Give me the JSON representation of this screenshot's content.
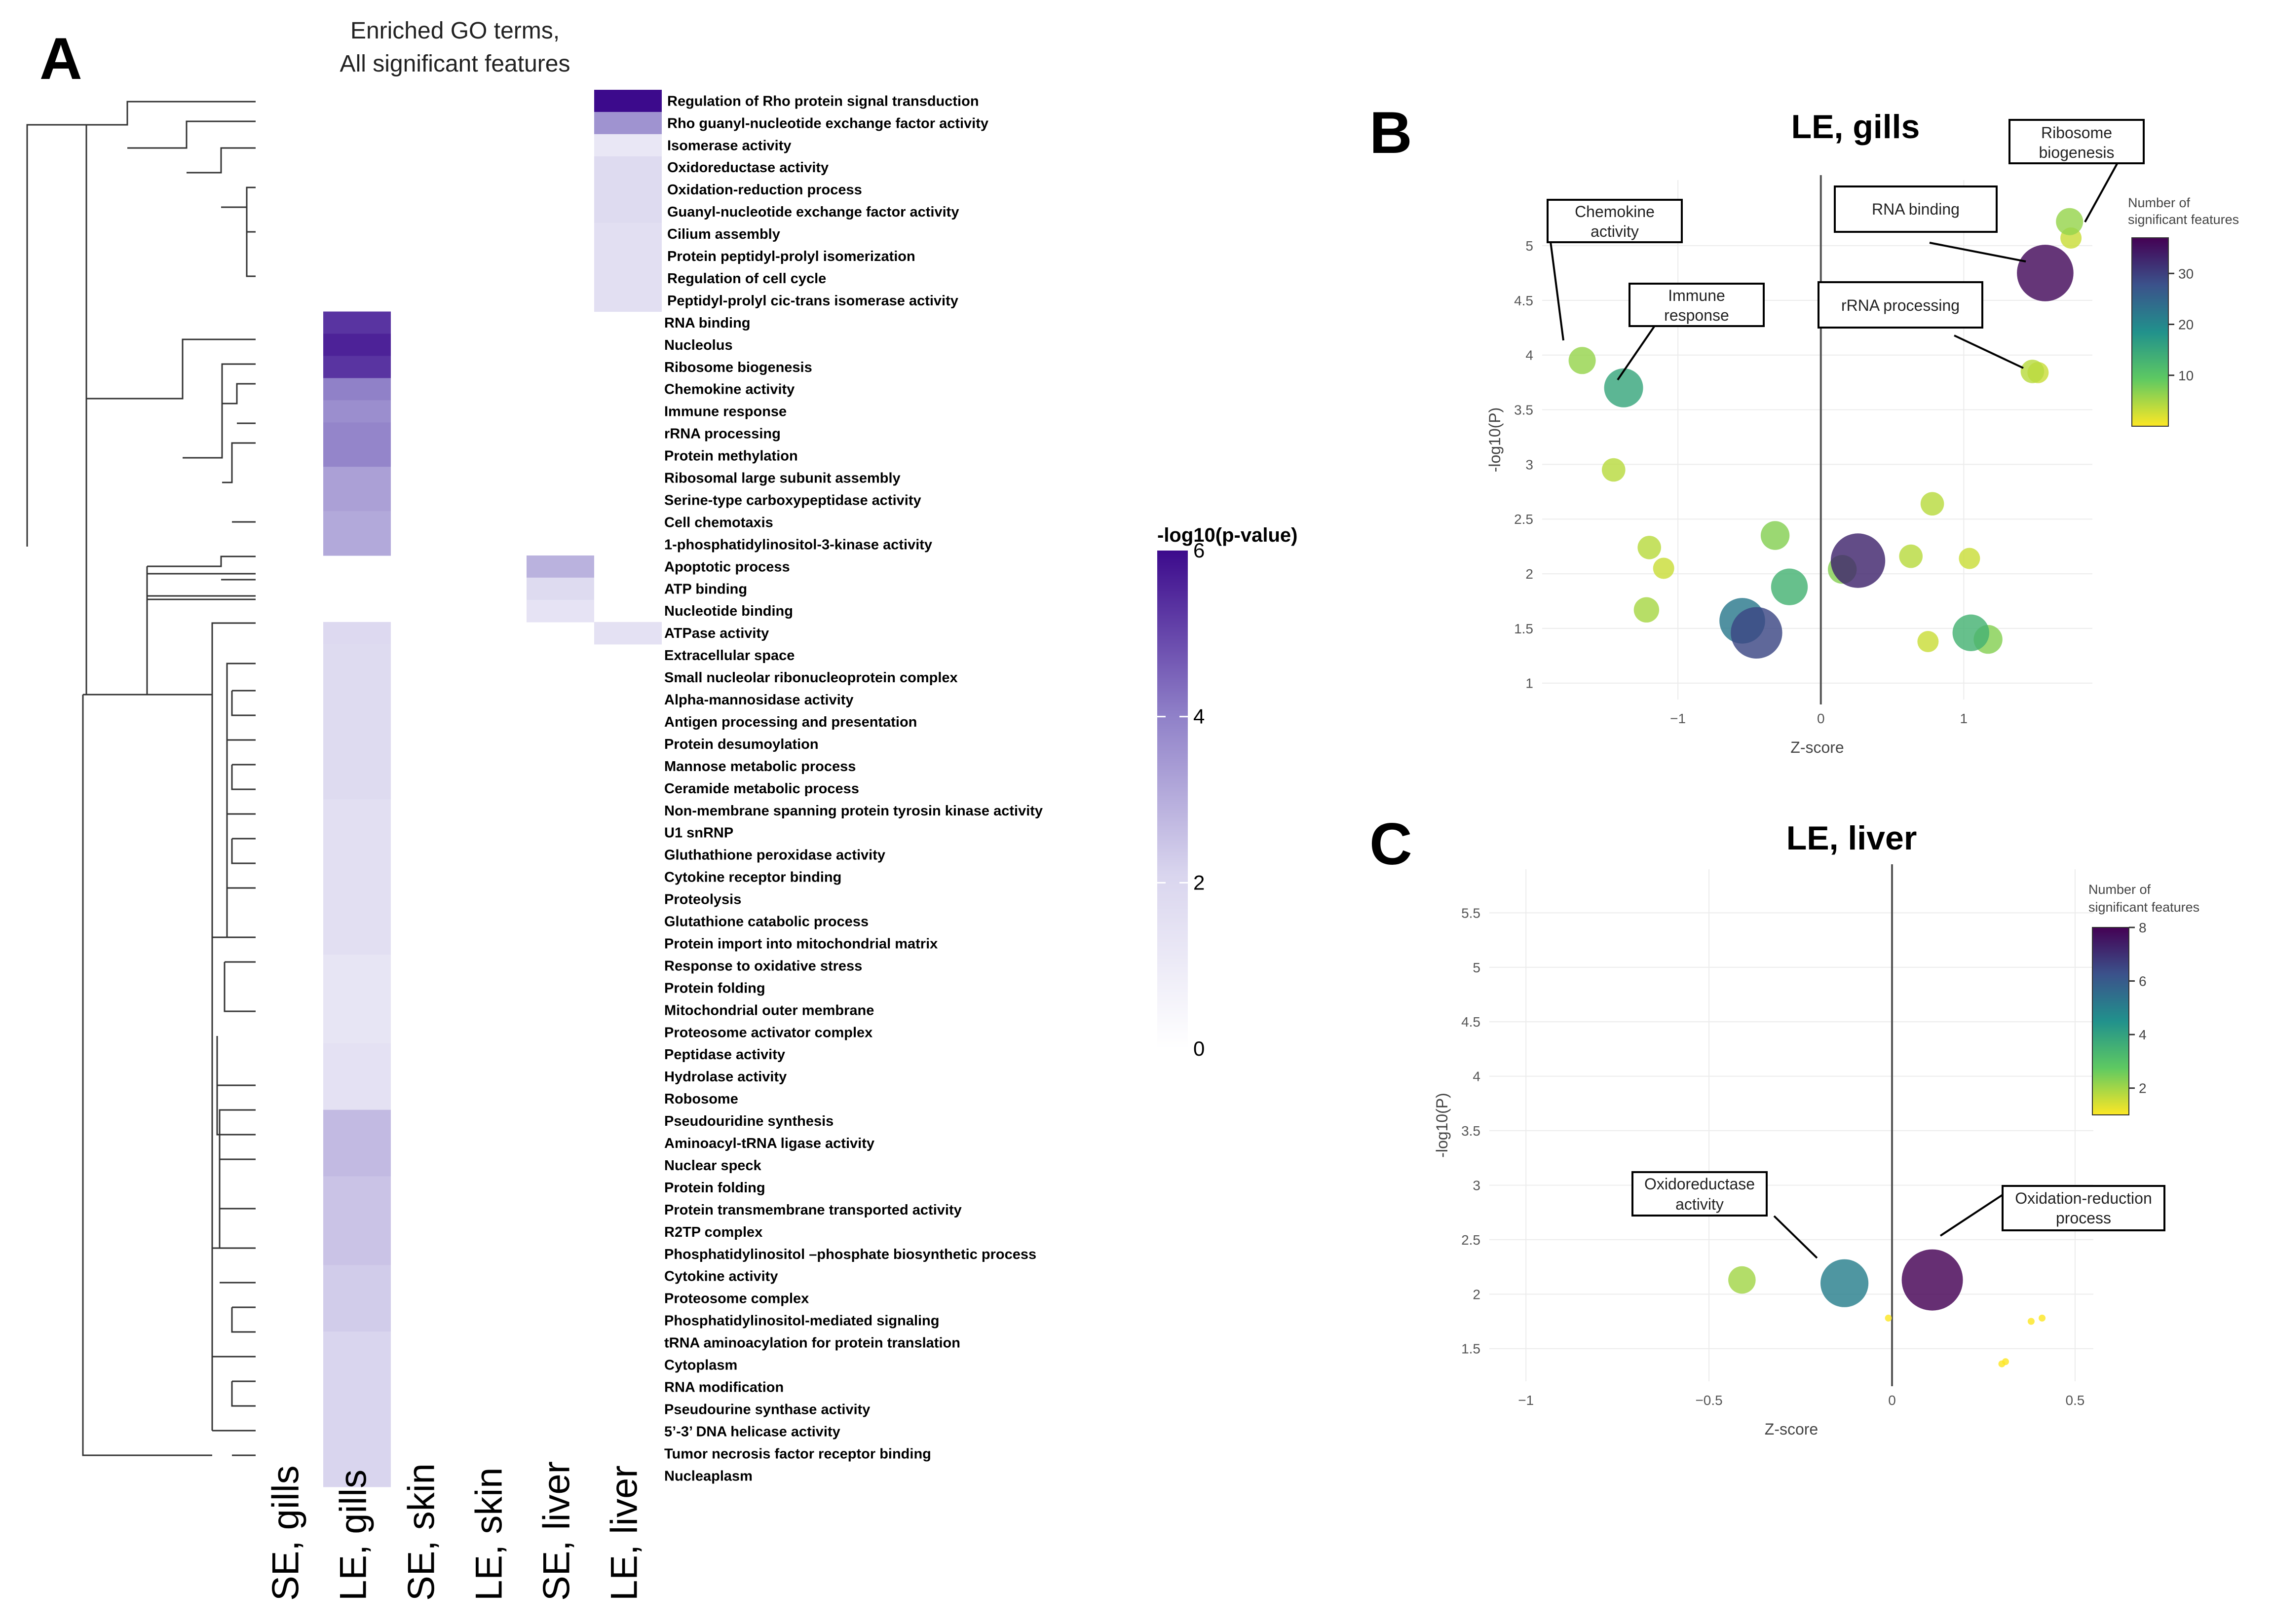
{
  "chart_data": [
    {
      "panel": "A",
      "type": "heatmap",
      "title_lines": [
        "Enriched GO terms,",
        "All significant features"
      ],
      "columns": [
        "SE, gills",
        "LE, gills",
        "SE, skin",
        "LE, skin",
        "SE, liver",
        "LE, liver"
      ],
      "legend_title": "-log10(p-value)",
      "legend_ticks": [
        "0",
        "2",
        "4",
        "6"
      ],
      "legend_range": [
        0,
        6
      ],
      "colors": {
        "low": "#ffffff",
        "high": "#3c0a8c"
      },
      "rows": [
        {
          "term": "Regulation of Rho protein signal transduction",
          "values": [
            null,
            null,
            null,
            null,
            null,
            6.0
          ]
        },
        {
          "term": "Rho guanyl-nucleotide exchange factor activity",
          "values": [
            null,
            null,
            null,
            null,
            null,
            3.6
          ]
        },
        {
          "term": "Isomerase activity",
          "values": [
            null,
            null,
            null,
            null,
            null,
            1.2
          ]
        },
        {
          "term": "Oxidoreductase activity",
          "values": [
            null,
            null,
            null,
            null,
            null,
            1.8
          ]
        },
        {
          "term": "Oxidation-reduction process",
          "values": [
            null,
            null,
            null,
            null,
            null,
            1.8
          ]
        },
        {
          "term": "Guanyl-nucleotide exchange factor activity",
          "values": [
            null,
            null,
            null,
            null,
            null,
            1.8
          ]
        },
        {
          "term": "Cilium assembly",
          "values": [
            null,
            null,
            null,
            null,
            null,
            1.6
          ]
        },
        {
          "term": "Protein peptidyl-prolyl isomerization",
          "values": [
            null,
            null,
            null,
            null,
            null,
            1.6
          ]
        },
        {
          "term": "Regulation of cell cycle",
          "values": [
            null,
            null,
            null,
            null,
            null,
            1.6
          ]
        },
        {
          "term": "Peptidyl-prolyl cic-trans isomerase activity",
          "values": [
            null,
            null,
            null,
            null,
            null,
            1.6
          ]
        },
        {
          "term": "RNA binding",
          "values": [
            null,
            5.3,
            null,
            null,
            null,
            null
          ]
        },
        {
          "term": "Nucleolus",
          "values": [
            null,
            5.6,
            null,
            null,
            null,
            null
          ]
        },
        {
          "term": "Ribosome biogenesis",
          "values": [
            null,
            5.3,
            null,
            null,
            null,
            null
          ]
        },
        {
          "term": "Chemokine activity",
          "values": [
            null,
            4.0,
            null,
            null,
            null,
            null
          ]
        },
        {
          "term": "Immune response",
          "values": [
            null,
            3.7,
            null,
            null,
            null,
            null
          ]
        },
        {
          "term": "rRNA processing",
          "values": [
            null,
            3.9,
            null,
            null,
            null,
            null
          ]
        },
        {
          "term": "Protein methylation",
          "values": [
            null,
            3.9,
            null,
            null,
            null,
            null
          ]
        },
        {
          "term": "Ribosomal large subunit assembly",
          "values": [
            null,
            3.3,
            null,
            null,
            null,
            null
          ]
        },
        {
          "term": "Serine-type carboxypeptidase activity",
          "values": [
            null,
            3.3,
            null,
            null,
            null,
            null
          ]
        },
        {
          "term": "Cell chemotaxis",
          "values": [
            null,
            3.1,
            null,
            null,
            null,
            null
          ]
        },
        {
          "term": "1-phosphatidylinositol-3-kinase activity",
          "values": [
            null,
            3.1,
            null,
            null,
            null,
            null
          ]
        },
        {
          "term": "Apoptotic process",
          "values": [
            null,
            null,
            null,
            null,
            2.9,
            null
          ]
        },
        {
          "term": "ATP binding",
          "values": [
            null,
            null,
            null,
            null,
            1.8,
            null
          ]
        },
        {
          "term": "Nucleotide binding",
          "values": [
            null,
            null,
            null,
            null,
            1.4,
            null
          ]
        },
        {
          "term": "ATPase activity",
          "values": [
            null,
            1.9,
            null,
            null,
            null,
            1.5
          ]
        },
        {
          "term": "Extracellular space",
          "values": [
            null,
            1.8,
            null,
            null,
            null,
            null
          ]
        },
        {
          "term": "Small nucleolar ribonucleoprotein complex",
          "values": [
            null,
            1.8,
            null,
            null,
            null,
            null
          ]
        },
        {
          "term": "Alpha-mannosidase activity",
          "values": [
            null,
            1.8,
            null,
            null,
            null,
            null
          ]
        },
        {
          "term": "Antigen processing and presentation",
          "values": [
            null,
            1.8,
            null,
            null,
            null,
            null
          ]
        },
        {
          "term": "Protein desumoylation",
          "values": [
            null,
            1.8,
            null,
            null,
            null,
            null
          ]
        },
        {
          "term": "Mannose metabolic process",
          "values": [
            null,
            1.8,
            null,
            null,
            null,
            null
          ]
        },
        {
          "term": "Ceramide metabolic process",
          "values": [
            null,
            1.8,
            null,
            null,
            null,
            null
          ]
        },
        {
          "term": "Non-membrane spanning protein tyrosin kinase activity",
          "values": [
            null,
            1.6,
            null,
            null,
            null,
            null
          ]
        },
        {
          "term": "U1 snRNP",
          "values": [
            null,
            1.6,
            null,
            null,
            null,
            null
          ]
        },
        {
          "term": "Gluthathione peroxidase activity",
          "values": [
            null,
            1.6,
            null,
            null,
            null,
            null
          ]
        },
        {
          "term": "Cytokine receptor binding",
          "values": [
            null,
            1.6,
            null,
            null,
            null,
            null
          ]
        },
        {
          "term": "Proteolysis",
          "values": [
            null,
            1.6,
            null,
            null,
            null,
            null
          ]
        },
        {
          "term": "Glutathione catabolic process",
          "values": [
            null,
            1.6,
            null,
            null,
            null,
            null
          ]
        },
        {
          "term": "Protein import into mitochondrial matrix",
          "values": [
            null,
            1.6,
            null,
            null,
            null,
            null
          ]
        },
        {
          "term": "Response to oxidative stress",
          "values": [
            null,
            1.3,
            null,
            null,
            null,
            null
          ]
        },
        {
          "term": "Protein folding",
          "values": [
            null,
            1.3,
            null,
            null,
            null,
            null
          ]
        },
        {
          "term": "Mitochondrial outer membrane",
          "values": [
            null,
            1.3,
            null,
            null,
            null,
            null
          ]
        },
        {
          "term": "Proteosome activator complex",
          "values": [
            null,
            1.3,
            null,
            null,
            null,
            null
          ]
        },
        {
          "term": "Peptidase activity",
          "values": [
            null,
            1.5,
            null,
            null,
            null,
            null
          ]
        },
        {
          "term": "Hydrolase activity",
          "values": [
            null,
            1.5,
            null,
            null,
            null,
            null
          ]
        },
        {
          "term": "Robosome",
          "values": [
            null,
            1.5,
            null,
            null,
            null,
            null
          ]
        },
        {
          "term": "Pseudouridine synthesis",
          "values": [
            null,
            2.7,
            null,
            null,
            null,
            null
          ]
        },
        {
          "term": "Aminoacyl-tRNA ligase activity",
          "values": [
            null,
            2.7,
            null,
            null,
            null,
            null
          ]
        },
        {
          "term": "Nuclear speck",
          "values": [
            null,
            2.7,
            null,
            null,
            null,
            null
          ]
        },
        {
          "term": "Protein folding",
          "values": [
            null,
            2.5,
            null,
            null,
            null,
            null
          ]
        },
        {
          "term": "Protein transmembrane transported activity",
          "values": [
            null,
            2.5,
            null,
            null,
            null,
            null
          ]
        },
        {
          "term": "R2TP complex",
          "values": [
            null,
            2.5,
            null,
            null,
            null,
            null
          ]
        },
        {
          "term": "Phosphatidylinositol –phosphate biosynthetic process",
          "values": [
            null,
            2.5,
            null,
            null,
            null,
            null
          ]
        },
        {
          "term": "Cytokine activity",
          "values": [
            null,
            2.3,
            null,
            null,
            null,
            null
          ]
        },
        {
          "term": "Proteosome complex",
          "values": [
            null,
            2.3,
            null,
            null,
            null,
            null
          ]
        },
        {
          "term": "Phosphatidylinositol-mediated signaling",
          "values": [
            null,
            2.3,
            null,
            null,
            null,
            null
          ]
        },
        {
          "term": "tRNA aminoacylation for protein translation",
          "values": [
            null,
            2.1,
            null,
            null,
            null,
            null
          ]
        },
        {
          "term": "Cytoplasm",
          "values": [
            null,
            2.1,
            null,
            null,
            null,
            null
          ]
        },
        {
          "term": "RNA modification",
          "values": [
            null,
            2.1,
            null,
            null,
            null,
            null
          ]
        },
        {
          "term": "Pseudourine synthase activity",
          "values": [
            null,
            2.1,
            null,
            null,
            null,
            null
          ]
        },
        {
          "term": "5’-3’ DNA helicase activity",
          "values": [
            null,
            2.1,
            null,
            null,
            null,
            null
          ]
        },
        {
          "term": "Tumor necrosis factor receptor binding",
          "values": [
            null,
            2.1,
            null,
            null,
            null,
            null
          ]
        },
        {
          "term": "Nucleaplasm",
          "values": [
            null,
            2.1,
            null,
            null,
            null,
            null
          ]
        }
      ]
    },
    {
      "panel": "B",
      "type": "scatter",
      "title": "LE, gills",
      "xlabel": "Z-score",
      "ylabel": "-log10(P)",
      "xlim": [
        -1.95,
        1.9
      ],
      "ylim": [
        0.85,
        5.6
      ],
      "xticks": [
        -1,
        0,
        1
      ],
      "yticks": [
        1,
        1.5,
        2,
        2.5,
        3,
        3.5,
        4,
        4.5,
        5
      ],
      "legend_title_lines": [
        "Number of",
        "significant features"
      ],
      "color_range": [
        0,
        37
      ],
      "color_ticks": [
        10,
        20,
        30
      ],
      "points": [
        {
          "x": 1.57,
          "y": 4.75,
          "n": 36
        },
        {
          "x": 0.26,
          "y": 2.12,
          "n": 33
        },
        {
          "x": -0.45,
          "y": 1.46,
          "n": 29
        },
        {
          "x": -0.55,
          "y": 1.57,
          "n": 22
        },
        {
          "x": -1.38,
          "y": 3.7,
          "n": 15
        },
        {
          "x": -0.22,
          "y": 1.88,
          "n": 13
        },
        {
          "x": 1.05,
          "y": 1.46,
          "n": 13
        },
        {
          "x": -0.32,
          "y": 2.35,
          "n": 7
        },
        {
          "x": 1.17,
          "y": 1.4,
          "n": 7
        },
        {
          "x": -1.67,
          "y": 3.95,
          "n": 6
        },
        {
          "x": 1.74,
          "y": 5.22,
          "n": 6
        },
        {
          "x": 0.15,
          "y": 2.04,
          "n": 7
        },
        {
          "x": 1.48,
          "y": 3.85,
          "n": 4
        },
        {
          "x": 0.78,
          "y": 2.64,
          "n": 4
        },
        {
          "x": 0.63,
          "y": 2.16,
          "n": 4
        },
        {
          "x": -1.45,
          "y": 2.95,
          "n": 4
        },
        {
          "x": -1.2,
          "y": 2.24,
          "n": 4
        },
        {
          "x": -1.1,
          "y": 2.05,
          "n": 3
        },
        {
          "x": -1.22,
          "y": 1.67,
          "n": 5
        },
        {
          "x": 1.04,
          "y": 2.14,
          "n": 3
        },
        {
          "x": 0.75,
          "y": 1.38,
          "n": 3
        },
        {
          "x": 1.52,
          "y": 3.84,
          "n": 3
        },
        {
          "x": 1.75,
          "y": 5.07,
          "n": 3
        }
      ],
      "annotations": [
        {
          "label_lines": [
            "Ribosome",
            "biogenesis"
          ]
        },
        {
          "label_lines": [
            "Chemokine",
            "activity"
          ]
        },
        {
          "label_lines": [
            "RNA binding"
          ]
        },
        {
          "label_lines": [
            "Immune",
            "response"
          ]
        },
        {
          "label_lines": [
            "rRNA processing"
          ]
        }
      ]
    },
    {
      "panel": "C",
      "type": "scatter",
      "title": "LE, liver",
      "xlabel": "Z-score",
      "ylabel": "-log10(P)",
      "xticklabels": [
        "−1",
        "−0.5",
        "0",
        "0.5"
      ],
      "xlim": [
        -1.1,
        0.55
      ],
      "ylim": [
        1.2,
        5.9
      ],
      "xticks": [
        -1,
        -0.5,
        0,
        0.5
      ],
      "yticks": [
        1.5,
        2,
        2.5,
        3,
        3.5,
        4,
        4.5,
        5,
        5.5
      ],
      "legend_title_lines": [
        "Number of",
        "significant features"
      ],
      "color_range": [
        1,
        8
      ],
      "color_ticks": [
        2,
        4,
        6,
        8
      ],
      "points": [
        {
          "x": 0.11,
          "y": 2.13,
          "n": 8
        },
        {
          "x": -0.13,
          "y": 2.1,
          "n": 5
        },
        {
          "x": -0.41,
          "y": 2.13,
          "n": 2
        },
        {
          "x": 0.3,
          "y": 1.36,
          "n": 1
        },
        {
          "x": 0.31,
          "y": 1.38,
          "n": 1
        },
        {
          "x": 0.38,
          "y": 1.75,
          "n": 1
        },
        {
          "x": 0.41,
          "y": 1.78,
          "n": 1
        },
        {
          "x": -0.01,
          "y": 1.78,
          "n": 1
        }
      ],
      "annotations": [
        {
          "label_lines": [
            "Oxidoreductase",
            "activity"
          ]
        },
        {
          "label_lines": [
            "Oxidation-reduction",
            "process"
          ]
        }
      ]
    }
  ],
  "panel_labels": [
    "A",
    "B",
    "C"
  ]
}
